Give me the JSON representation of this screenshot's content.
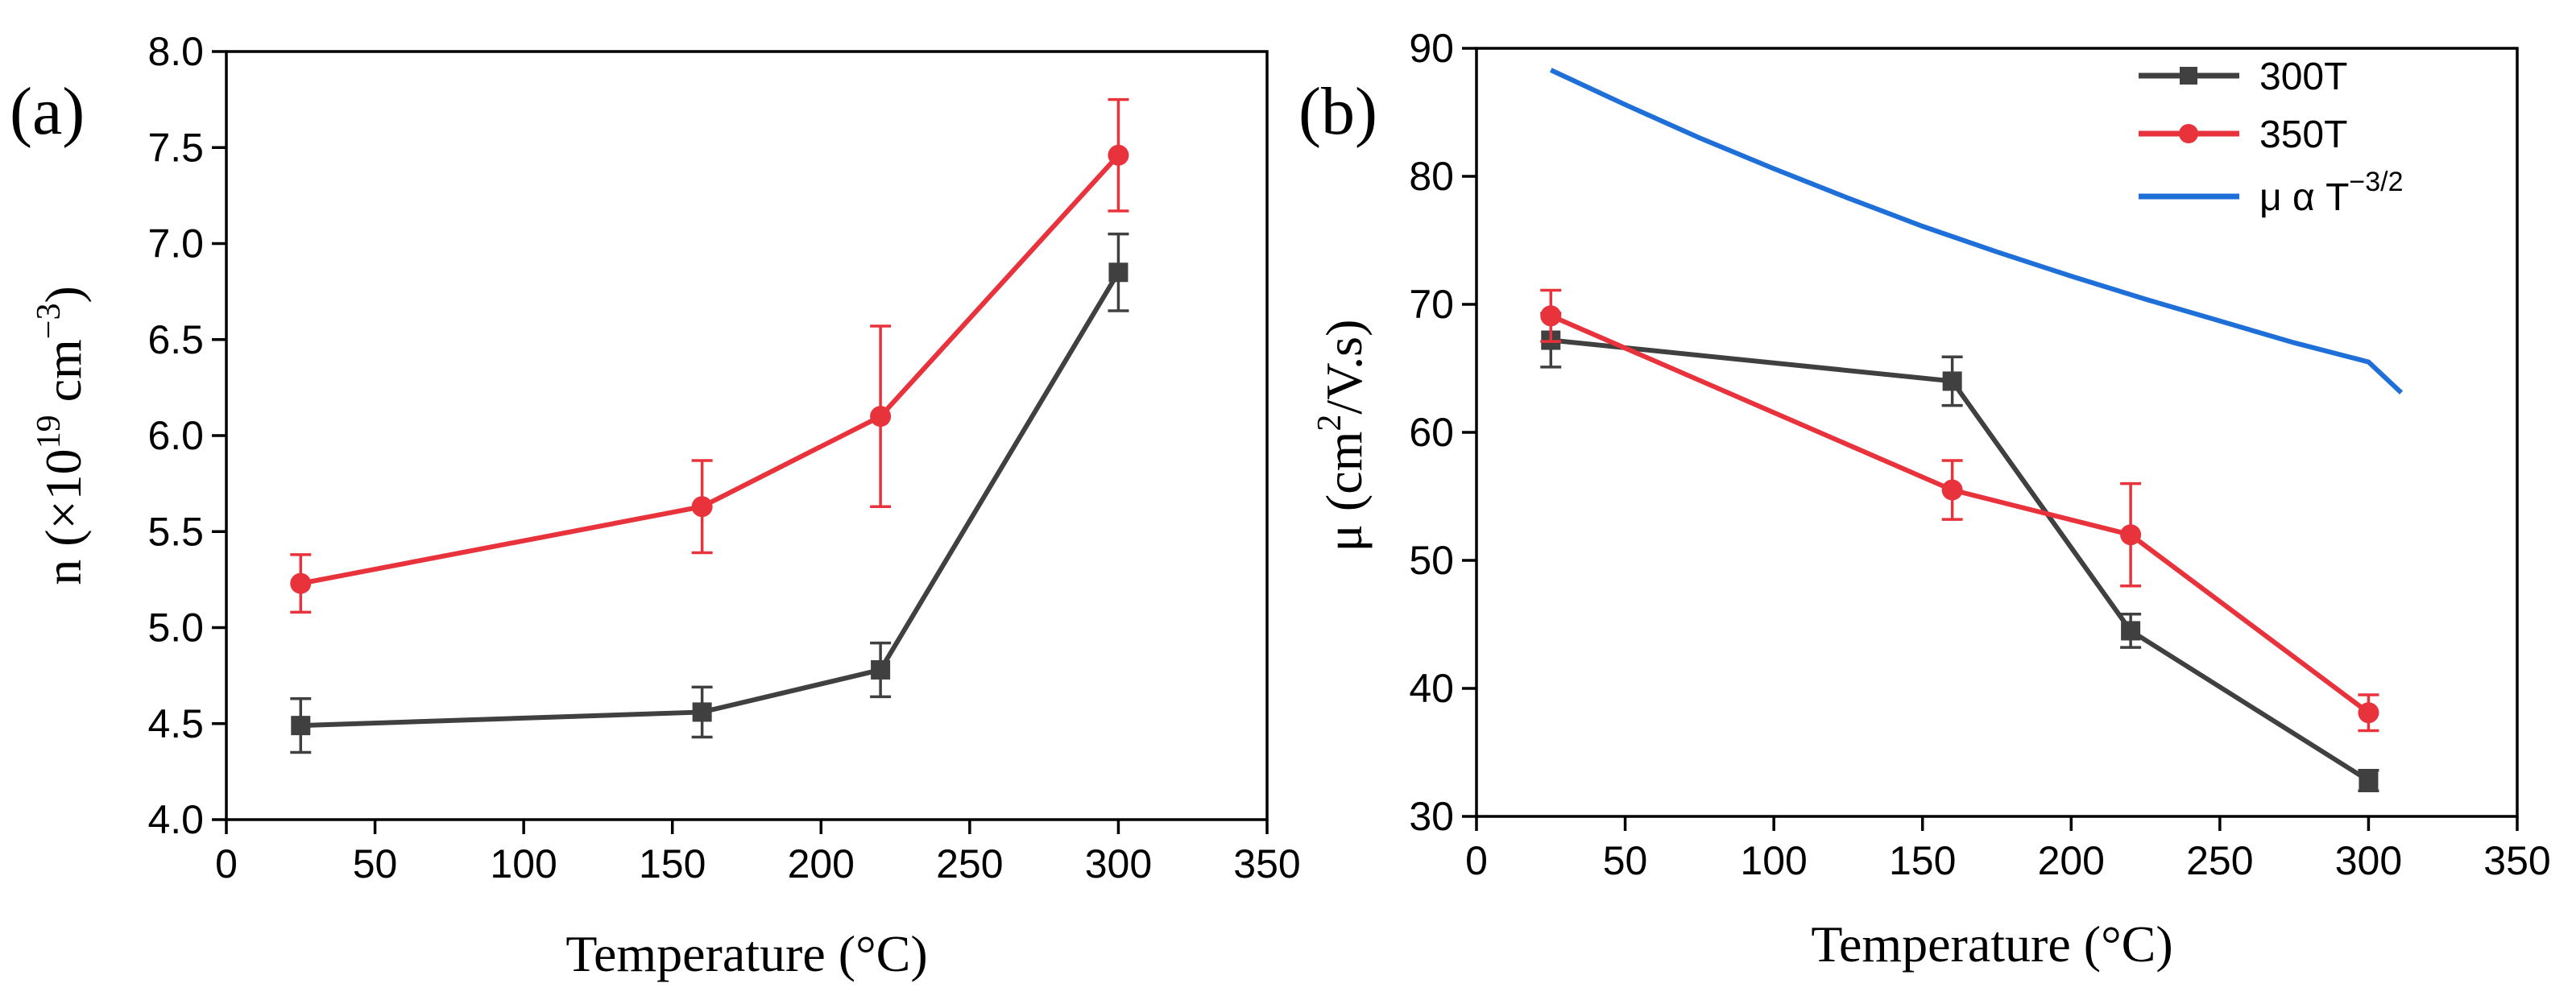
{
  "chart_data": [
    {
      "type": "line",
      "panel_label": "(a)",
      "xlabel": "Temperature (°C)",
      "ylabel": {
        "base": "n (×10",
        "sup": "19",
        "mid": " cm",
        "sup2": "−3",
        "end": ")"
      },
      "xlim": [
        0,
        350
      ],
      "ylim": [
        4.0,
        8.0
      ],
      "xticks": [
        0,
        50,
        100,
        150,
        200,
        250,
        300,
        350
      ],
      "yticks": [
        4.0,
        4.5,
        5.0,
        5.5,
        6.0,
        6.5,
        7.0,
        7.5,
        8.0
      ],
      "x": [
        25,
        160,
        220,
        300
      ],
      "series": [
        {
          "name": "300T",
          "color": "#404040",
          "marker": "square",
          "values": [
            4.49,
            4.56,
            4.78,
            6.85
          ],
          "errors": [
            0.14,
            0.13,
            0.14,
            0.2
          ]
        },
        {
          "name": "350T",
          "color": "#e8323c",
          "marker": "circle",
          "values": [
            5.23,
            5.63,
            6.1,
            7.46
          ],
          "errors": [
            0.15,
            0.24,
            0.47,
            0.29
          ]
        }
      ]
    },
    {
      "type": "line",
      "panel_label": "(b)",
      "xlabel": "Temperature (°C)",
      "ylabel": {
        "base": "μ (cm",
        "sup": "2",
        "end": "/V.s)"
      },
      "xlim": [
        0,
        350
      ],
      "ylim": [
        30,
        90
      ],
      "xticks": [
        0,
        50,
        100,
        150,
        200,
        250,
        300,
        350
      ],
      "yticks": [
        30,
        40,
        50,
        60,
        70,
        80,
        90
      ],
      "x": [
        25,
        160,
        220,
        300
      ],
      "series": [
        {
          "name": "300T",
          "color": "#404040",
          "marker": "square",
          "values": [
            67.2,
            64.0,
            44.5,
            32.8
          ],
          "errors": [
            2.1,
            1.9,
            1.3,
            0.8
          ]
        },
        {
          "name": "350T",
          "color": "#e8323c",
          "marker": "circle",
          "values": [
            69.1,
            55.5,
            52.0,
            38.1
          ],
          "errors": [
            2.0,
            2.3,
            4.0,
            1.4
          ]
        }
      ],
      "model_curve": {
        "name": "μ α T",
        "name_sup": "−3/2",
        "color": "#1f6fd8",
        "x": [
          25,
          50,
          75,
          100,
          125,
          150,
          175,
          200,
          225,
          250,
          275,
          300,
          311
        ],
        "values": [
          88.3,
          85.6,
          83.0,
          80.6,
          78.3,
          76.1,
          74.1,
          72.2,
          70.4,
          68.7,
          67.0,
          65.5,
          63.1
        ]
      },
      "legend_position": "top-right"
    }
  ]
}
